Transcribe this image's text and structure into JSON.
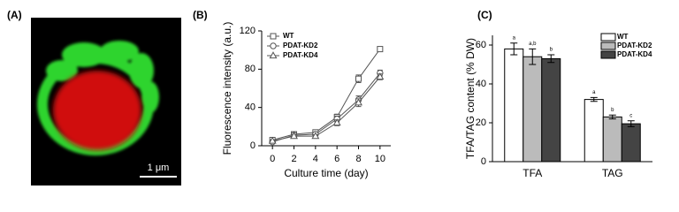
{
  "image": {
    "label": "(A)",
    "scale_bar_label": "1 μm"
  },
  "chart_data": [
    {
      "type": "line",
      "label": "(B)",
      "x_label": "Culture time (day)",
      "y_label": "Fluorescence intensity (a.u.)",
      "x": [
        0,
        2,
        4,
        6,
        8,
        10
      ],
      "xlim": [
        -1,
        11
      ],
      "xticks": [
        0,
        2,
        4,
        6,
        8,
        10
      ],
      "ylim": [
        0,
        120
      ],
      "yticks": [
        0,
        40,
        80,
        120
      ],
      "legend": "upper left",
      "series": [
        {
          "name": "WT",
          "color": "#555555",
          "marker": "square",
          "values": [
            6,
            12,
            14,
            30,
            70,
            101
          ],
          "errors": [
            1,
            1.5,
            1.5,
            3,
            4,
            2
          ]
        },
        {
          "name": "PDAT-KD2",
          "color": "#555555",
          "marker": "circle",
          "values": [
            4,
            11,
            12,
            28,
            48,
            76
          ],
          "errors": [
            1,
            1.5,
            1.5,
            3,
            4,
            3
          ]
        },
        {
          "name": "PDAT-KD4",
          "color": "#555555",
          "marker": "triangle",
          "values": [
            5,
            10,
            10,
            24,
            45,
            72
          ],
          "errors": [
            1,
            1.5,
            1.5,
            3,
            4,
            3
          ]
        }
      ]
    },
    {
      "type": "bar",
      "label": "(C)",
      "y_label": "TFA/TAG content (% DW)",
      "categories": [
        "TFA",
        "TAG"
      ],
      "ylim": [
        0,
        65
      ],
      "yticks": [
        0,
        20,
        40,
        60
      ],
      "legend": "upper right",
      "series": [
        {
          "name": "WT",
          "color": "#ffffff",
          "values": [
            58,
            32
          ],
          "errors": [
            3,
            1
          ],
          "letters": [
            "a",
            "a"
          ]
        },
        {
          "name": "PDAT-KD2",
          "color": "#bbbbbb",
          "values": [
            54,
            23
          ],
          "errors": [
            4,
            1
          ],
          "letters": [
            "a,b",
            "b"
          ]
        },
        {
          "name": "PDAT-KD4",
          "color": "#444444",
          "values": [
            53,
            19.5
          ],
          "errors": [
            2,
            1.5
          ],
          "letters": [
            "b",
            "c"
          ]
        }
      ]
    }
  ]
}
